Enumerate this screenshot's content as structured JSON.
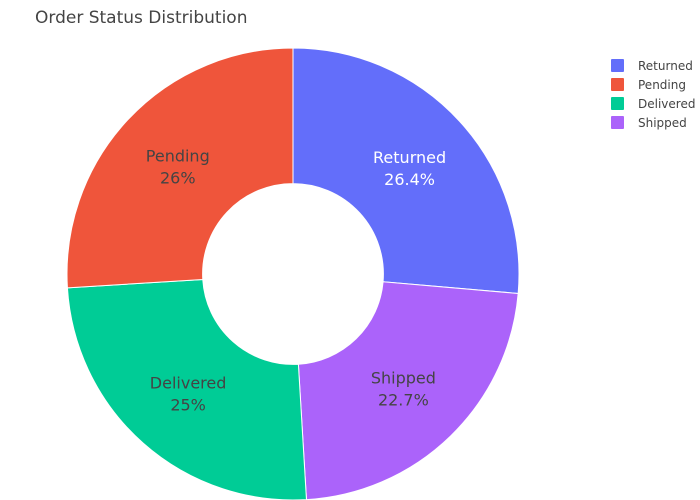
{
  "chart_data": {
    "type": "pie",
    "title": "Order Status Distribution",
    "hole": 0.4,
    "slices": [
      {
        "label": "Returned",
        "percent_label": "26.4%",
        "value": 26.4,
        "color": "#636efa",
        "text_color": "#ffffff"
      },
      {
        "label": "Shipped",
        "percent_label": "22.7%",
        "value": 22.7,
        "color": "#ab63fa",
        "text_color": "#444444"
      },
      {
        "label": "Delivered",
        "percent_label": "25%",
        "value": 25.0,
        "color": "#00cc96",
        "text_color": "#444444"
      },
      {
        "label": "Pending",
        "percent_label": "26%",
        "value": 26.0,
        "color": "#ef553b",
        "text_color": "#444444"
      }
    ],
    "legend": {
      "placement": "top-right",
      "items": [
        {
          "label": "Returned",
          "color": "#636efa"
        },
        {
          "label": "Pending",
          "color": "#ef553b"
        },
        {
          "label": "Delivered",
          "color": "#00cc96"
        },
        {
          "label": "Shipped",
          "color": "#ab63fa"
        }
      ]
    }
  }
}
